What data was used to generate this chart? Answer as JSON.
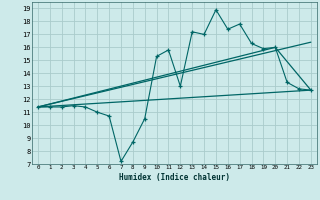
{
  "xlabel": "Humidex (Indice chaleur)",
  "background_color": "#cdeaea",
  "grid_color": "#aacccc",
  "line_color": "#006666",
  "xlim": [
    -0.5,
    23.5
  ],
  "ylim": [
    7,
    19.5
  ],
  "xticks": [
    0,
    1,
    2,
    3,
    4,
    5,
    6,
    7,
    8,
    9,
    10,
    11,
    12,
    13,
    14,
    15,
    16,
    17,
    18,
    19,
    20,
    21,
    22,
    23
  ],
  "yticks": [
    7,
    8,
    9,
    10,
    11,
    12,
    13,
    14,
    15,
    16,
    17,
    18,
    19
  ],
  "line1_x": [
    0,
    1,
    2,
    3,
    4,
    5,
    6,
    7,
    8,
    9,
    10,
    11,
    12,
    13,
    14,
    15,
    16,
    17,
    18,
    19,
    20,
    21,
    22,
    23
  ],
  "line1_y": [
    11.4,
    11.4,
    11.4,
    11.5,
    11.4,
    11.0,
    10.7,
    7.2,
    8.7,
    10.5,
    15.3,
    15.8,
    13.0,
    17.2,
    17.0,
    18.9,
    17.4,
    17.8,
    16.3,
    15.9,
    16.0,
    13.3,
    12.8,
    12.7
  ],
  "line2_x": [
    0,
    23
  ],
  "line2_y": [
    11.4,
    16.4
  ],
  "line3_x": [
    0,
    20,
    23
  ],
  "line3_y": [
    11.4,
    16.0,
    12.7
  ],
  "line4_x": [
    0,
    23
  ],
  "line4_y": [
    11.4,
    12.7
  ]
}
